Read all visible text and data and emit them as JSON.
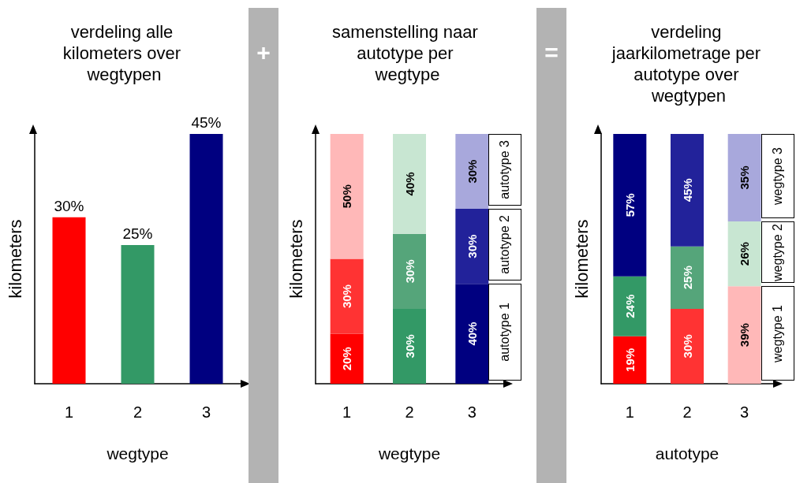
{
  "chart_data": [
    {
      "type": "bar",
      "title": "verdeling alle kilometers over wegtypen",
      "xlabel": "wegtype",
      "ylabel": "kilometers",
      "categories": [
        "1",
        "2",
        "3"
      ],
      "values": [
        30,
        25,
        45
      ],
      "colors": [
        "#ff0000",
        "#339966",
        "#000080"
      ],
      "value_labels": [
        "30%",
        "25%",
        "45%"
      ]
    },
    {
      "type": "bar",
      "title": "samenstelling naar autotype per wegtype",
      "xlabel": "wegtype",
      "ylabel": "kilometers",
      "annotations": [
        "+"
      ],
      "categories": [
        "1",
        "2",
        "3"
      ],
      "stacked": true,
      "series": [
        {
          "name": "autotype 1",
          "values": [
            20,
            30,
            40
          ],
          "colors": [
            "#ff0000",
            "#339966",
            "#000080"
          ],
          "value_labels": [
            "20%",
            "30%",
            "40%"
          ]
        },
        {
          "name": "autotype 2",
          "values": [
            30,
            30,
            30
          ],
          "colors": [
            "#ff3333",
            "#55a57a",
            "#22229a"
          ],
          "value_labels": [
            "30%",
            "30%",
            "30%"
          ]
        },
        {
          "name": "autotype 3",
          "values": [
            50,
            40,
            30
          ],
          "colors": [
            "#ffb8b8",
            "#c8e6d2",
            "#a8a8dc"
          ],
          "value_labels": [
            "50%",
            "40%",
            "30%"
          ]
        }
      ]
    },
    {
      "type": "bar",
      "title": "verdeling jaarkilometrage per autotype over wegtypen",
      "xlabel": "autotype",
      "ylabel": "kilometers",
      "annotations": [
        "="
      ],
      "categories": [
        "1",
        "2",
        "3"
      ],
      "stacked": true,
      "series": [
        {
          "name": "wegtype 1",
          "values": [
            19,
            30,
            39
          ],
          "colors": [
            "#ff0000",
            "#ff3333",
            "#ffb8b8"
          ],
          "value_labels": [
            "19%",
            "30%",
            "39%"
          ]
        },
        {
          "name": "wegtype 2",
          "values": [
            24,
            25,
            26
          ],
          "colors": [
            "#339966",
            "#55a57a",
            "#c8e6d2"
          ],
          "value_labels": [
            "24%",
            "25%",
            "26%"
          ]
        },
        {
          "name": "wegtype 3",
          "values": [
            57,
            45,
            35
          ],
          "colors": [
            "#000080",
            "#22229a",
            "#a8a8dc"
          ],
          "value_labels": [
            "57%",
            "45%",
            "35%"
          ]
        }
      ]
    }
  ]
}
